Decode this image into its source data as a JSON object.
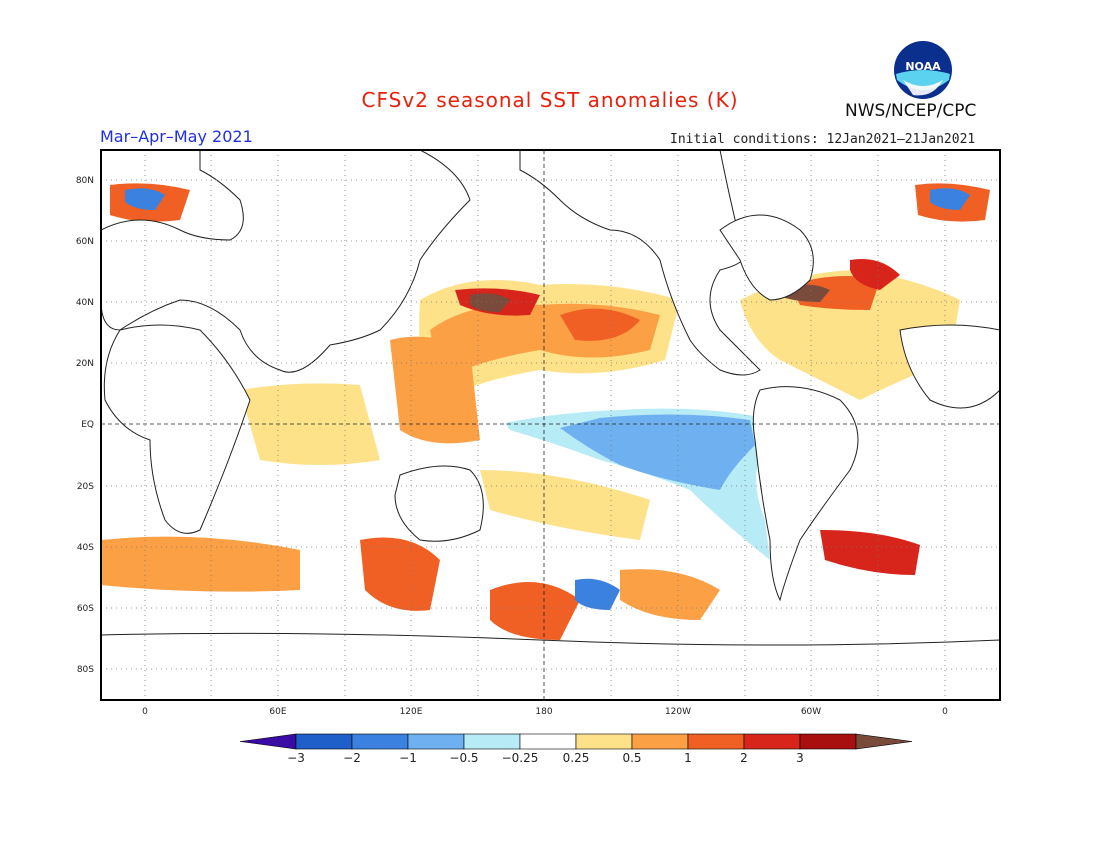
{
  "header": {
    "title": "CFSv2 seasonal SST anomalies (K)",
    "agency": "NWS/NCEP/CPC",
    "season": "Mar–Apr–May 2021",
    "initial_conditions": "Initial conditions: 12Jan2021–21Jan2021",
    "logo_icon": "noaa-logo-icon",
    "logo_text": "NOAA"
  },
  "map_axes": {
    "lat_labels": [
      "80N",
      "60N",
      "40N",
      "20N",
      "EQ",
      "20S",
      "40S",
      "60S",
      "80S"
    ],
    "lon_labels": [
      "0",
      "60E",
      "120E",
      "180",
      "120W",
      "60W",
      "0"
    ]
  },
  "colorbar": {
    "labels": [
      "−3",
      "−2",
      "−1",
      "−0.5",
      "−0.25",
      "0.25",
      "0.5",
      "1",
      "2",
      "3"
    ],
    "colors": [
      "#3a0ca3",
      "#1f5fc9",
      "#3b82e0",
      "#6fb1f0",
      "#b7ebf5",
      "#ffffff",
      "#fde28a",
      "#fca046",
      "#f06024",
      "#d8251c",
      "#a81010",
      "#7a4a3a"
    ]
  }
}
